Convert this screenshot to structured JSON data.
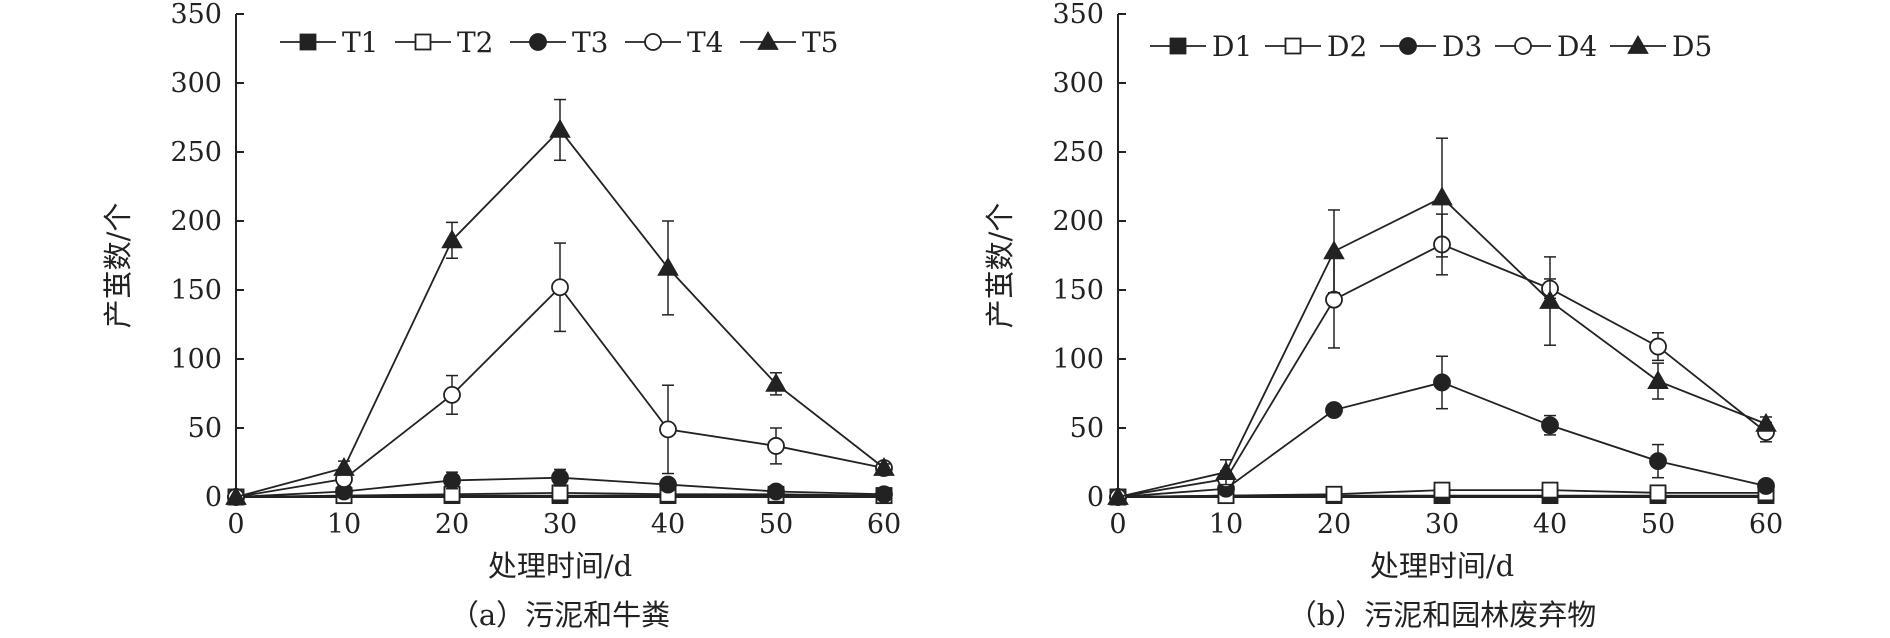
{
  "chart_data": [
    {
      "type": "line",
      "caption": "（a）污泥和牛粪",
      "xlabel": "处理时间/d",
      "ylabel": "产茧数/个",
      "x": [
        0,
        10,
        20,
        30,
        40,
        50,
        60
      ],
      "xlim": [
        0,
        60
      ],
      "ylim": [
        0,
        350
      ],
      "xticks": [
        0,
        10,
        20,
        30,
        40,
        50,
        60
      ],
      "yticks": [
        0,
        50,
        100,
        150,
        200,
        250,
        300,
        350
      ],
      "grid": false,
      "legend_position": "top",
      "series": [
        {
          "name": "T1",
          "marker": "square-filled",
          "values": [
            0,
            1,
            1,
            1,
            1,
            1,
            1
          ],
          "errors": [
            0,
            0,
            0,
            0,
            0,
            0,
            0
          ]
        },
        {
          "name": "T2",
          "marker": "square-open",
          "values": [
            0,
            1,
            2,
            3,
            2,
            2,
            1
          ],
          "errors": [
            0,
            0,
            4,
            4,
            3,
            0,
            0
          ]
        },
        {
          "name": "T3",
          "marker": "circle-filled",
          "values": [
            0,
            4,
            12,
            14,
            9,
            4,
            2
          ],
          "errors": [
            0,
            2,
            6,
            6,
            3,
            2,
            0
          ]
        },
        {
          "name": "T4",
          "marker": "circle-open",
          "values": [
            0,
            13,
            74,
            152,
            49,
            37,
            21
          ],
          "errors": [
            0,
            6,
            14,
            32,
            32,
            13,
            3
          ]
        },
        {
          "name": "T5",
          "marker": "triangle-filled",
          "values": [
            0,
            21,
            186,
            266,
            166,
            82,
            21
          ],
          "errors": [
            0,
            5,
            13,
            22,
            34,
            8,
            3
          ]
        }
      ]
    },
    {
      "type": "line",
      "caption": "（b）污泥和园林废弃物",
      "xlabel": "处理时间/d",
      "ylabel": "产茧数/个",
      "x": [
        0,
        10,
        20,
        30,
        40,
        50,
        60
      ],
      "xlim": [
        0,
        60
      ],
      "ylim": [
        0,
        350
      ],
      "xticks": [
        0,
        10,
        20,
        30,
        40,
        50,
        60
      ],
      "yticks": [
        0,
        50,
        100,
        150,
        200,
        250,
        300,
        350
      ],
      "grid": false,
      "legend_position": "top",
      "series": [
        {
          "name": "D1",
          "marker": "square-filled",
          "values": [
            0,
            1,
            1,
            1,
            1,
            1,
            1
          ],
          "errors": [
            0,
            0,
            0,
            0,
            0,
            0,
            0
          ]
        },
        {
          "name": "D2",
          "marker": "square-open",
          "values": [
            0,
            1,
            2,
            5,
            5,
            3,
            3
          ],
          "errors": [
            0,
            0,
            0,
            0,
            0,
            0,
            0
          ]
        },
        {
          "name": "D3",
          "marker": "circle-filled",
          "values": [
            0,
            6,
            63,
            83,
            52,
            26,
            8
          ],
          "errors": [
            0,
            2,
            0,
            19,
            7,
            12,
            0
          ]
        },
        {
          "name": "D4",
          "marker": "circle-open",
          "values": [
            0,
            13,
            143,
            183,
            151,
            109,
            47
          ],
          "errors": [
            0,
            6,
            35,
            22,
            7,
            10,
            7
          ]
        },
        {
          "name": "D5",
          "marker": "triangle-filled",
          "values": [
            0,
            18,
            178,
            217,
            142,
            84,
            53
          ],
          "errors": [
            0,
            9,
            30,
            43,
            32,
            13,
            5
          ]
        }
      ]
    }
  ]
}
